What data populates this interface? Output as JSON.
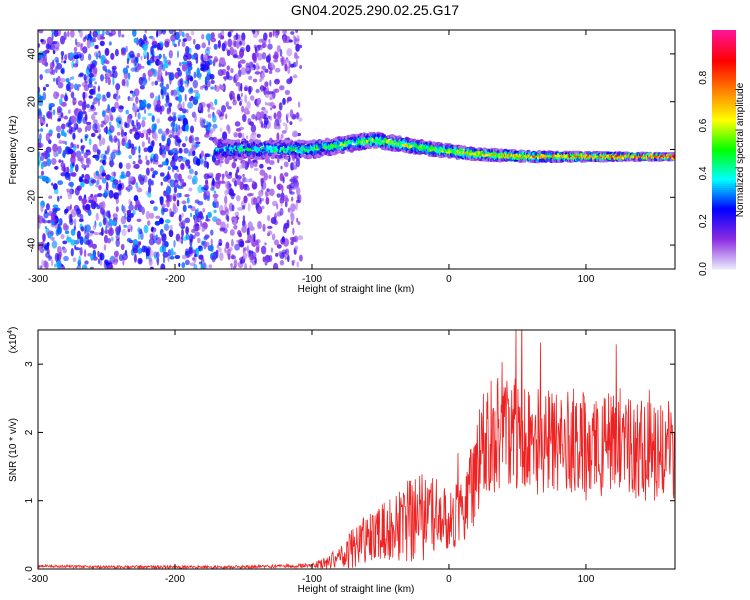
{
  "title": "GN04.2025.290.02.25.G17",
  "colors": {
    "snr_line": "#ee2222",
    "colormap": [
      "#e6e6fa",
      "#8a2be2",
      "#0000ff",
      "#00ffff",
      "#00ff00",
      "#ffff00",
      "#ff8000",
      "#ff0000",
      "#ff1493"
    ]
  },
  "chart_data": [
    {
      "type": "heatmap",
      "title": "",
      "xlabel": "Height of straight line (km)",
      "ylabel": "Frequency (Hz)",
      "xlim": [
        -300,
        165
      ],
      "ylim": [
        -50,
        50
      ],
      "x_ticks": [
        "-300",
        "-200",
        "-100",
        "0",
        "100"
      ],
      "y_ticks": [
        "-40",
        "-20",
        "0",
        "20",
        "40"
      ],
      "colorbar": {
        "label": "Normalized spectral amplitude",
        "range": [
          0,
          1
        ],
        "ticks": [
          "0.0",
          "0.2",
          "0.4",
          "0.6",
          "0.8"
        ]
      },
      "regions": [
        {
          "x_range": [
            -300,
            -170
          ],
          "description_level": "scattered noise",
          "mean_amplitude": 0.15
        },
        {
          "x_range": [
            -170,
            -108
          ],
          "description_level": "faint scattered noise",
          "mean_amplitude": 0.08
        },
        {
          "x_range": [
            -170,
            165
          ],
          "center_frequency_hz": [
            0,
            0,
            4,
            0,
            -2,
            -3,
            -3
          ],
          "center_x_km": [
            -170,
            -100,
            -55,
            -10,
            20,
            60,
            165
          ],
          "peak_amplitude": 0.9
        }
      ]
    },
    {
      "type": "line",
      "title": "",
      "xlabel": "Height of straight line (km)",
      "ylabel": "SNR (10 * v/v)",
      "y_scale_note": "(x10",
      "y_scale_exponent": "4",
      "xlim": [
        -300,
        165
      ],
      "ylim": [
        0,
        3.5
      ],
      "x_ticks": [
        "-300",
        "-200",
        "-100",
        "0",
        "100"
      ],
      "y_ticks": [
        "0",
        "1",
        "2",
        "3"
      ],
      "series": [
        {
          "x": [
            -300,
            -250,
            -200,
            -150,
            -100,
            -90,
            -80,
            -70,
            -60,
            -50,
            -40,
            -30,
            -20,
            -10,
            0,
            10,
            20,
            25,
            30,
            40,
            50,
            60,
            70,
            80,
            90,
            100,
            110,
            120,
            130,
            140,
            150,
            160,
            165
          ],
          "y": [
            0.04,
            0.03,
            0.03,
            0.03,
            0.05,
            0.1,
            0.18,
            0.3,
            0.45,
            0.55,
            0.6,
            0.7,
            0.75,
            0.8,
            0.75,
            0.85,
            1.4,
            1.8,
            1.9,
            2.1,
            2.0,
            1.9,
            1.85,
            1.8,
            1.85,
            1.8,
            1.75,
            1.8,
            1.8,
            1.75,
            1.7,
            1.75,
            1.7
          ],
          "noise_amplitude": [
            0.02,
            0.02,
            0.02,
            0.02,
            0.03,
            0.1,
            0.15,
            0.3,
            0.35,
            0.4,
            0.5,
            0.6,
            0.65,
            0.55,
            0.5,
            0.5,
            0.7,
            0.8,
            0.9,
            1.0,
            0.9,
            0.8,
            0.8,
            0.8,
            0.8,
            0.8,
            0.75,
            0.75,
            0.8,
            0.75,
            0.7,
            0.7,
            0.7
          ]
        }
      ]
    }
  ]
}
